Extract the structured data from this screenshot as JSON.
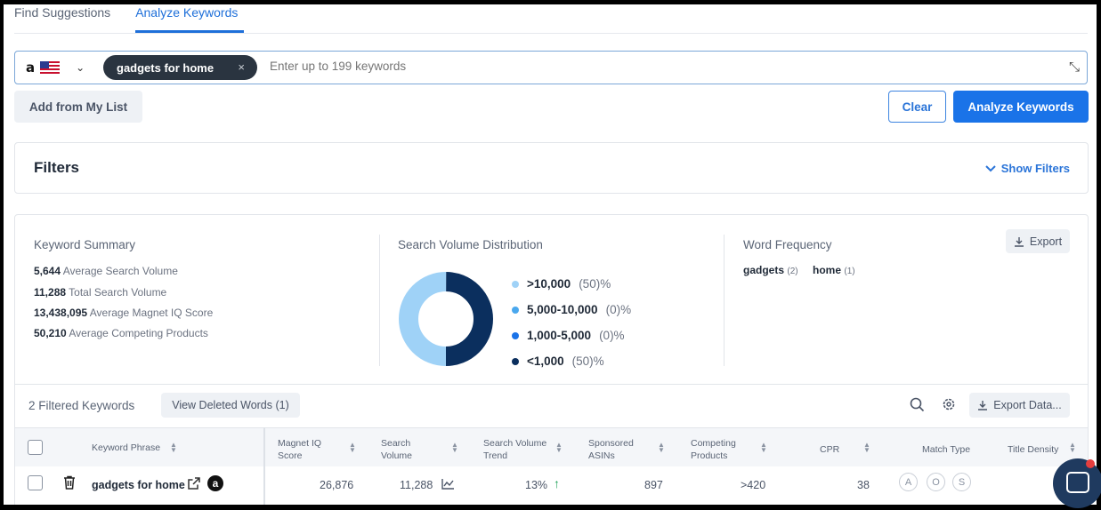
{
  "tabs": [
    {
      "label": "Find Suggestions"
    },
    {
      "label": "Analyze Keywords"
    }
  ],
  "keyword_input": {
    "marketplace_logo": "a",
    "chip_label": "gadgets for home",
    "chip_close": "×",
    "placeholder": "Enter up to 199 keywords",
    "value": ""
  },
  "actions": {
    "add_from_list": "Add from My List",
    "clear": "Clear",
    "analyze": "Analyze Keywords"
  },
  "filters": {
    "title": "Filters",
    "toggle": "Show Filters"
  },
  "summary": {
    "title": "Keyword Summary",
    "stats": [
      {
        "value": "5,644",
        "label": "Average Search Volume"
      },
      {
        "value": "11,288",
        "label": "Total Search Volume"
      },
      {
        "value": "13,438,095",
        "label": "Average Magnet IQ Score"
      },
      {
        "value": "50,210",
        "label": "Average Competing Products"
      }
    ]
  },
  "distribution": {
    "title": "Search Volume Distribution",
    "legend": [
      {
        "range": ">10,000",
        "pct": "(50)%",
        "color": "#9fd2f7"
      },
      {
        "range": "5,000-10,000",
        "pct": "(0)%",
        "color": "#4aa8ee"
      },
      {
        "range": "1,000-5,000",
        "pct": "(0)%",
        "color": "#1a73e8"
      },
      {
        "range": "<1,000",
        "pct": "(50)%",
        "color": "#0b2f5e"
      }
    ],
    "donut_fractions": [
      0.5,
      0,
      0,
      0.5
    ]
  },
  "word_frequency": {
    "title": "Word Frequency",
    "export": "Export",
    "words": [
      {
        "word": "gadgets",
        "count": "(2)"
      },
      {
        "word": "home",
        "count": "(1)"
      }
    ]
  },
  "table_tools": {
    "count_text": "2 Filtered Keywords",
    "deleted": "View Deleted Words (1)",
    "export_data": "Export Data..."
  },
  "table": {
    "headers": {
      "phrase": "Keyword Phrase",
      "magnet_iq": "Magnet IQ Score",
      "search_volume": "Search Volume",
      "trend": "Search Volume Trend",
      "sponsored": "Sponsored ASINs",
      "competing": "Competing Products",
      "cpr": "CPR",
      "match_type": "Match Type",
      "title_density": "Title Density"
    },
    "rows": [
      {
        "phrase": "gadgets for home",
        "magnet_iq": "26,876",
        "search_volume": "11,288",
        "trend": "13%",
        "sponsored": "897",
        "competing": ">420",
        "cpr": "38",
        "match_types": [
          "A",
          "O",
          "S"
        ]
      }
    ]
  },
  "icons": [
    "amazon-icon",
    "us-flag-icon",
    "chevron-down-icon",
    "close-icon",
    "expand-icon",
    "search-icon",
    "gear-icon",
    "download-icon",
    "trash-icon",
    "external-link-icon",
    "trend-chart-icon",
    "arrow-up-icon",
    "chat-icon"
  ]
}
